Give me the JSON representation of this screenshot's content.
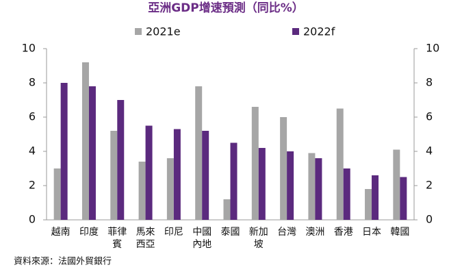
{
  "chart_data": {
    "type": "bar",
    "title": "亞洲GDP增速預測（同比%）",
    "categories": [
      "越南",
      "印度",
      "菲律賓",
      "馬來西亞",
      "印尼",
      "中國內地",
      "泰國",
      "新加坡",
      "台灣",
      "澳洲",
      "香港",
      "日本",
      "韓國"
    ],
    "series": [
      {
        "name": "2021e",
        "color": "#a6a6a6",
        "values": [
          3.0,
          9.2,
          5.2,
          3.4,
          3.6,
          7.8,
          1.2,
          6.6,
          6.0,
          3.9,
          6.5,
          1.8,
          4.1
        ]
      },
      {
        "name": "2022f",
        "color": "#5b2a7e",
        "values": [
          8.0,
          7.8,
          7.0,
          5.5,
          5.3,
          5.2,
          4.5,
          4.2,
          4.0,
          3.6,
          3.0,
          2.6,
          2.5
        ]
      }
    ],
    "ylim": [
      0,
      10
    ],
    "yticks": [
      0,
      2,
      4,
      6,
      8,
      10
    ],
    "y2lim": [
      0,
      10
    ],
    "y2ticks": [
      0,
      2,
      4,
      6,
      8,
      10
    ],
    "source": "資料來源：法國外貿銀行"
  }
}
